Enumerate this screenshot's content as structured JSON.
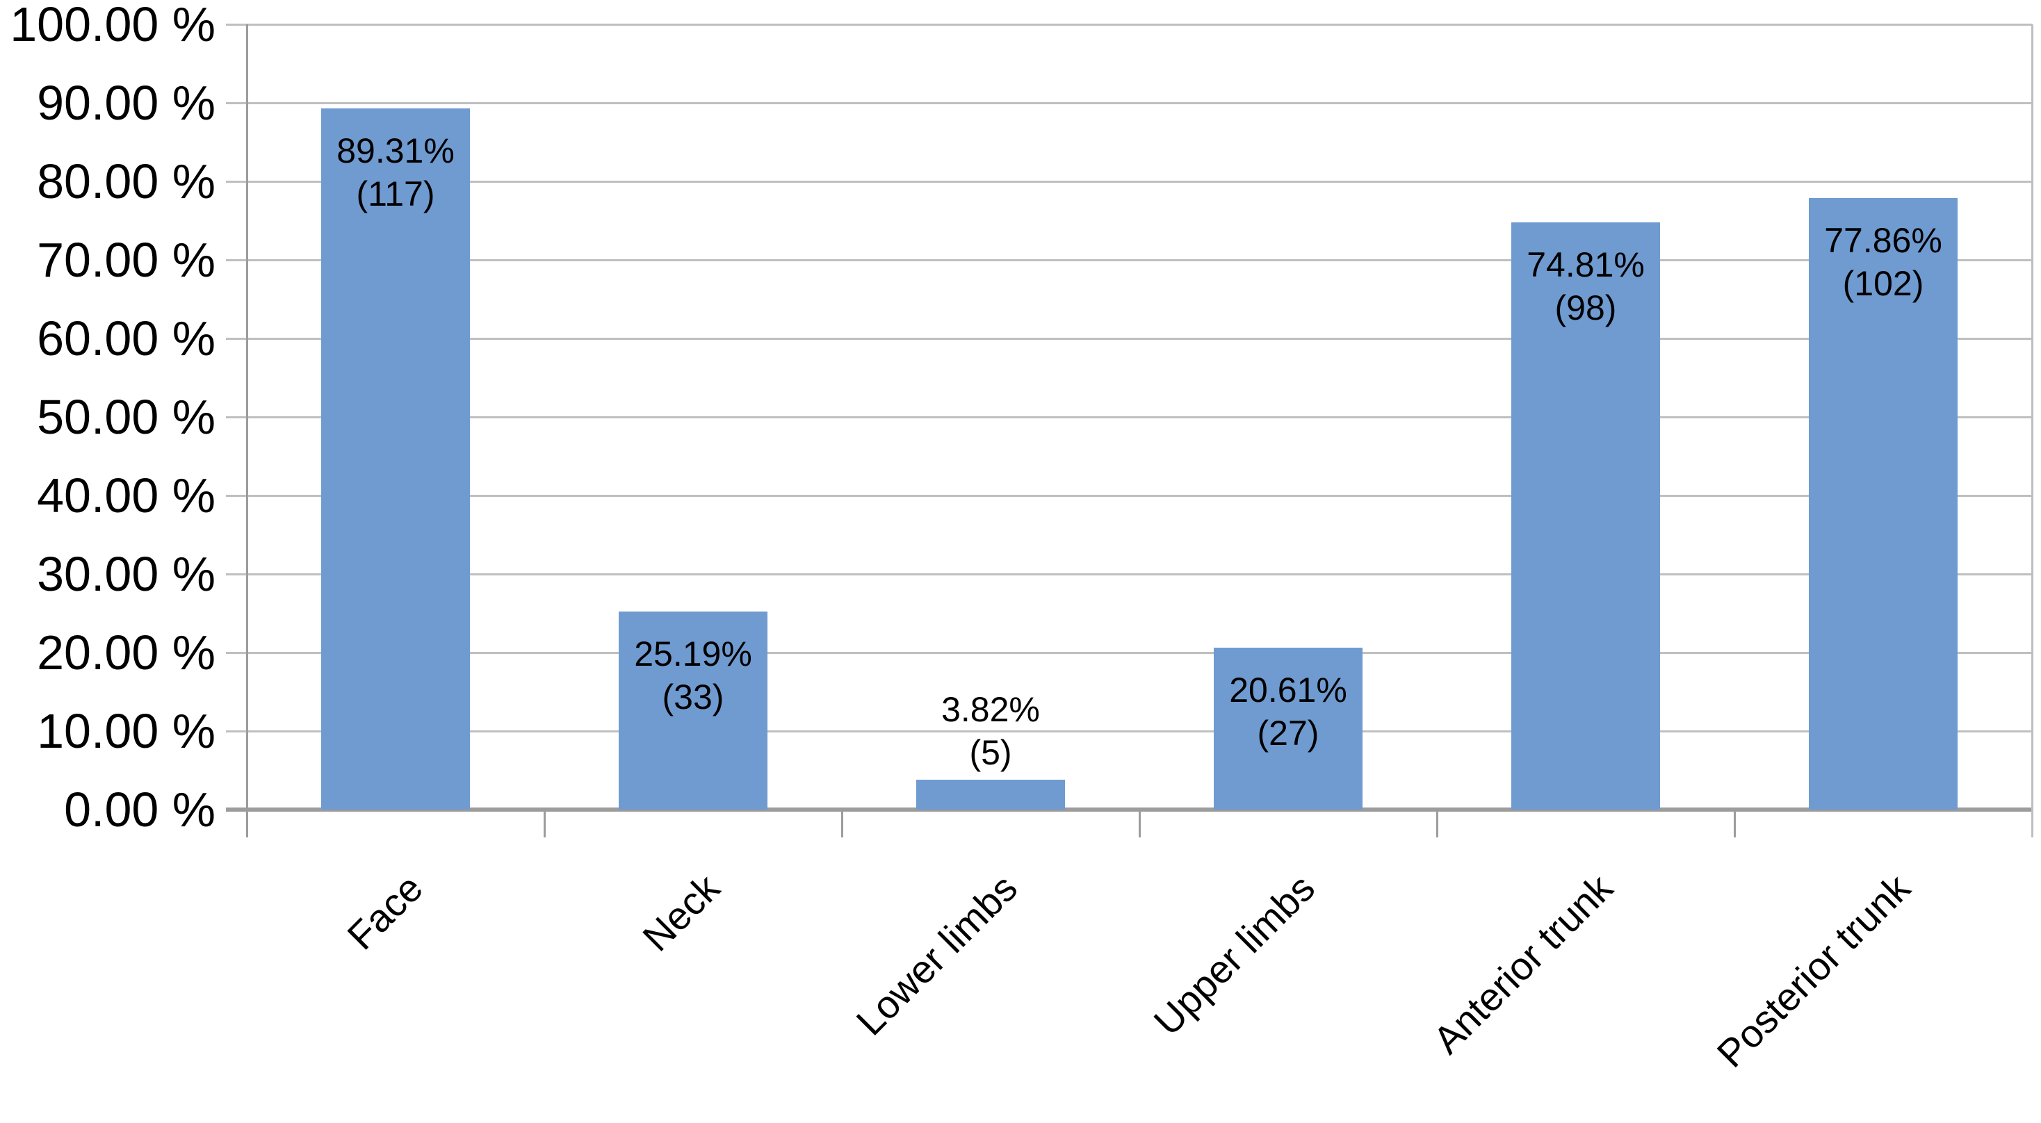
{
  "chart_data": {
    "type": "bar",
    "title": "",
    "xlabel": "",
    "ylabel": "",
    "categories": [
      "Face",
      "Neck",
      "Lower limbs",
      "Upper limbs",
      "Anterior trunk",
      "Posterior trunk"
    ],
    "values": [
      89.31,
      25.19,
      3.82,
      20.61,
      74.81,
      77.86
    ],
    "counts": [
      117,
      33,
      5,
      27,
      98,
      102
    ],
    "data_labels": [
      "89.31%",
      "25.19%",
      "3.82%",
      "20.61%",
      "74.81%",
      "77.86%"
    ],
    "count_labels": [
      "(117)",
      "(33)",
      "(5)",
      "(27)",
      "(98)",
      "(102)"
    ],
    "ytick_labels": [
      "100.00 %",
      "90.00 %",
      "80.00 %",
      "70.00 %",
      "60.00 %",
      "50.00 %",
      "40.00 %",
      "30.00 %",
      "20.00 %",
      "10.00 %",
      "0.00 %"
    ],
    "ylim": [
      0,
      100
    ],
    "ytick_step": 10,
    "grid": true,
    "legend": "none",
    "label_position_note": "value and count labels drawn inside top of bar; above bar when bar is too short (Lower limbs)",
    "colors": {
      "bar": "#6F9BD1",
      "gridline": "#BFBFBF",
      "axis": "#9C9C9C",
      "text": "#000000",
      "background": "#FFFFFF"
    }
  }
}
